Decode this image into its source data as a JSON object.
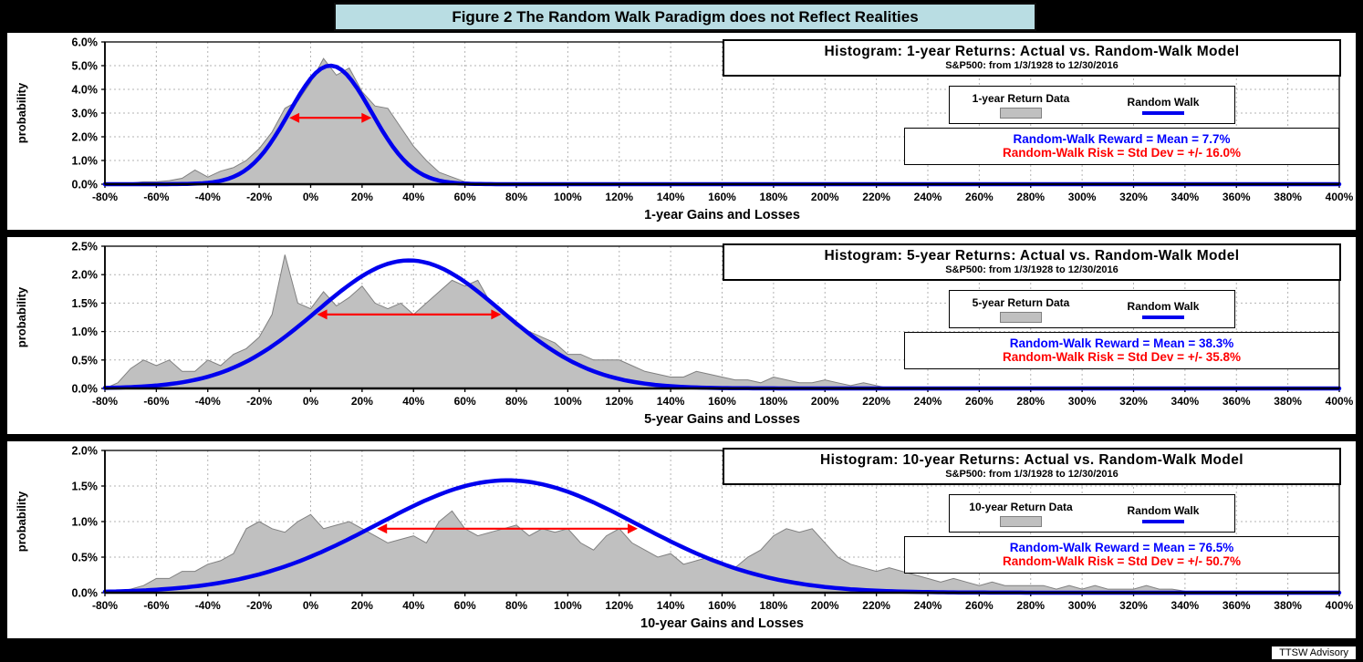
{
  "figure": {
    "banner_title": "Figure 2 The Random Walk Paradigm does not Reflect Realities",
    "credit": "TTSW Advisory",
    "colors": {
      "banner_bg": "#b9dde3",
      "histogram_fill": "#c0c0c0",
      "histogram_edge": "#808080",
      "random_walk_line": "#0000ee",
      "risk_arrow": "#ff0000",
      "reward_text": "#0000ff",
      "risk_text": "#ff0000",
      "grid": "#b3b3b3"
    }
  },
  "chart_data": [
    {
      "type": "area",
      "curve_type": "normal",
      "title": "Histogram: 1-year Returns: Actual vs. Random-Walk Model",
      "subtitle": "S&P500: from 1/3/1928 to 12/30/2016",
      "xlabel": "1-year Gains and Losses",
      "ylabel": "probability",
      "legend": [
        "1-year Return Data",
        "Random Walk"
      ],
      "reward_label": "Random-Walk Reward = Mean = 7.7%",
      "risk_label": "Random-Walk Risk = Std Dev = +/- 16.0%",
      "mean_pct": 7.7,
      "std_pct": 16.0,
      "xlim": [
        -80,
        400
      ],
      "xtick_step": 20,
      "ylim": [
        0,
        6.0
      ],
      "ytick_step": 1.0,
      "curve_peak_pct": 5.0,
      "arrow_y_pct": 2.8,
      "histogram": {
        "x_start": -80,
        "x_step": 5,
        "values": [
          0,
          0,
          0.05,
          0.1,
          0.1,
          0.15,
          0.25,
          0.6,
          0.3,
          0.55,
          0.7,
          1.0,
          1.5,
          2.2,
          3.2,
          3.5,
          4.3,
          5.3,
          4.6,
          4.9,
          3.9,
          3.3,
          3.2,
          2.4,
          1.6,
          1.0,
          0.5,
          0.3,
          0.1,
          0.05,
          0
        ]
      }
    },
    {
      "type": "area",
      "curve_type": "normal",
      "title": "Histogram: 5-year Returns: Actual vs. Random-Walk Model",
      "subtitle": "S&P500: from 1/3/1928 to 12/30/2016",
      "xlabel": "5-year Gains and Losses",
      "ylabel": "probability",
      "legend": [
        "5-year Return Data",
        "Random Walk"
      ],
      "reward_label": "Random-Walk Reward = Mean = 38.3%",
      "risk_label": "Random-Walk Risk = Std Dev = +/- 35.8%",
      "mean_pct": 38.3,
      "std_pct": 35.8,
      "xlim": [
        -80,
        400
      ],
      "xtick_step": 20,
      "ylim": [
        0,
        2.5
      ],
      "ytick_step": 0.5,
      "curve_peak_pct": 2.25,
      "arrow_y_pct": 1.3,
      "histogram": {
        "x_start": -80,
        "x_step": 5,
        "values": [
          0,
          0.1,
          0.35,
          0.5,
          0.4,
          0.5,
          0.3,
          0.3,
          0.5,
          0.4,
          0.6,
          0.7,
          0.9,
          1.3,
          2.35,
          1.5,
          1.4,
          1.7,
          1.45,
          1.6,
          1.8,
          1.5,
          1.4,
          1.5,
          1.3,
          1.5,
          1.7,
          1.9,
          1.8,
          1.9,
          1.5,
          1.3,
          1.1,
          1.0,
          0.9,
          0.8,
          0.6,
          0.6,
          0.5,
          0.5,
          0.5,
          0.4,
          0.3,
          0.25,
          0.2,
          0.2,
          0.3,
          0.25,
          0.2,
          0.15,
          0.15,
          0.1,
          0.2,
          0.15,
          0.1,
          0.1,
          0.15,
          0.1,
          0.05,
          0.1,
          0.05,
          0
        ]
      }
    },
    {
      "type": "area",
      "curve_type": "normal",
      "title": "Histogram: 10-year Returns: Actual vs. Random-Walk Model",
      "subtitle": "S&P500: from 1/3/1928 to 12/30/2016",
      "xlabel": "10-year Gains and Losses",
      "ylabel": "probability",
      "legend": [
        "10-year Return Data",
        "Random Walk"
      ],
      "reward_label": "Random-Walk Reward = Mean = 76.5%",
      "risk_label": "Random-Walk Risk = Std Dev = +/- 50.7%",
      "mean_pct": 76.5,
      "std_pct": 50.7,
      "xlim": [
        -80,
        400
      ],
      "xtick_step": 20,
      "ylim": [
        0,
        2.0
      ],
      "ytick_step": 0.5,
      "curve_peak_pct": 1.58,
      "arrow_y_pct": 0.9,
      "histogram": {
        "x_start": -80,
        "x_step": 5,
        "values": [
          0,
          0.02,
          0.05,
          0.1,
          0.2,
          0.2,
          0.3,
          0.3,
          0.4,
          0.45,
          0.55,
          0.9,
          1.0,
          0.9,
          0.85,
          1.0,
          1.1,
          0.9,
          0.95,
          1.0,
          0.9,
          0.8,
          0.7,
          0.75,
          0.8,
          0.7,
          1.0,
          1.15,
          0.9,
          0.8,
          0.85,
          0.9,
          0.95,
          0.8,
          0.9,
          0.85,
          0.9,
          0.7,
          0.6,
          0.8,
          0.9,
          0.7,
          0.6,
          0.5,
          0.55,
          0.4,
          0.45,
          0.5,
          0.4,
          0.35,
          0.5,
          0.6,
          0.8,
          0.9,
          0.85,
          0.9,
          0.7,
          0.5,
          0.4,
          0.35,
          0.3,
          0.35,
          0.3,
          0.25,
          0.2,
          0.15,
          0.2,
          0.15,
          0.1,
          0.15,
          0.1,
          0.1,
          0.1,
          0.1,
          0.05,
          0.1,
          0.05,
          0.1,
          0.05,
          0.05,
          0.05,
          0.1,
          0.05,
          0.05,
          0.02,
          0
        ]
      }
    }
  ]
}
